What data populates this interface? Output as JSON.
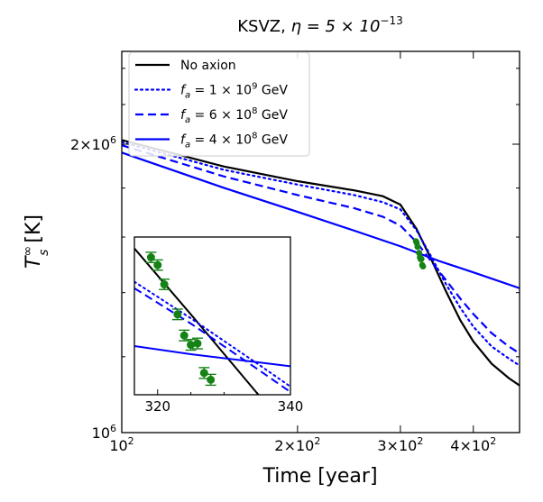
{
  "chart_data": {
    "type": "line",
    "title_text": "KSVZ, ",
    "title_math": "η = 5 × 10",
    "title_exp": "−13",
    "xlabel": "Time [year]",
    "ylabel_main": "T",
    "ylabel_sup": "∞",
    "ylabel_sub": "s",
    "ylabel_unit": " [K]",
    "xscale": "log",
    "yscale": "log",
    "xlim": [
      100,
      480
    ],
    "ylim": [
      1000000,
      2500000
    ],
    "x_ticks": [
      {
        "value": 100,
        "mant": "10",
        "exp": "2"
      },
      {
        "value": 200,
        "mant": "2×10",
        "exp": "2"
      },
      {
        "value": 300,
        "mant": "3×10",
        "exp": "2"
      },
      {
        "value": 400,
        "mant": "4×10",
        "exp": "2"
      }
    ],
    "y_ticks": [
      {
        "value": 1000000,
        "mant": "10",
        "exp": "6"
      },
      {
        "value": 2000000,
        "mant": "2×10",
        "exp": "6"
      }
    ],
    "legend_position": "top-left",
    "series": [
      {
        "label": "No axion",
        "label_prefix": "",
        "label_suffix": "",
        "color": "#000000",
        "dash": "solid",
        "points": [
          [
            100,
            2020000
          ],
          [
            150,
            1895000
          ],
          [
            200,
            1830000
          ],
          [
            250,
            1790000
          ],
          [
            280,
            1765000
          ],
          [
            300,
            1730000
          ],
          [
            320,
            1630000
          ],
          [
            340,
            1510000
          ],
          [
            360,
            1400000
          ],
          [
            380,
            1310000
          ],
          [
            400,
            1245000
          ],
          [
            430,
            1180000
          ],
          [
            460,
            1140000
          ],
          [
            480,
            1120000
          ]
        ]
      },
      {
        "label": "",
        "label_prefix": "f",
        "label_prefix_sub": "a",
        "label_mid": " = 1 × 10",
        "label_exp": "9",
        "label_suffix": " GeV",
        "color": "#0000ff",
        "dash": "dotted",
        "points": [
          [
            100,
            2010000
          ],
          [
            150,
            1880000
          ],
          [
            200,
            1815000
          ],
          [
            250,
            1770000
          ],
          [
            280,
            1740000
          ],
          [
            300,
            1710000
          ],
          [
            320,
            1625000
          ],
          [
            340,
            1520000
          ],
          [
            360,
            1425000
          ],
          [
            380,
            1350000
          ],
          [
            400,
            1290000
          ],
          [
            430,
            1230000
          ],
          [
            460,
            1195000
          ],
          [
            480,
            1175000
          ]
        ]
      },
      {
        "label": "",
        "label_prefix": "f",
        "label_prefix_sub": "a",
        "label_mid": " = 6 × 10",
        "label_exp": "8",
        "label_suffix": " GeV",
        "color": "#0000ff",
        "dash": "dashed",
        "points": [
          [
            100,
            1995000
          ],
          [
            150,
            1850000
          ],
          [
            200,
            1770000
          ],
          [
            250,
            1715000
          ],
          [
            280,
            1680000
          ],
          [
            300,
            1645000
          ],
          [
            320,
            1580000
          ],
          [
            340,
            1505000
          ],
          [
            360,
            1440000
          ],
          [
            380,
            1380000
          ],
          [
            400,
            1330000
          ],
          [
            430,
            1270000
          ],
          [
            460,
            1230000
          ],
          [
            480,
            1210000
          ]
        ]
      },
      {
        "label": "",
        "label_prefix": "f",
        "label_prefix_sub": "a",
        "label_mid": " = 4 × 10",
        "label_exp": "8",
        "label_suffix": " GeV",
        "color": "#0000ff",
        "dash": "solid",
        "points": [
          [
            100,
            1960000
          ],
          [
            150,
            1800000
          ],
          [
            200,
            1700000
          ],
          [
            250,
            1625000
          ],
          [
            300,
            1565000
          ],
          [
            350,
            1510000
          ],
          [
            400,
            1470000
          ],
          [
            480,
            1415000
          ]
        ]
      }
    ],
    "observations": {
      "color": "#148214",
      "points": [
        [
          319,
          1584000
        ],
        [
          320,
          1578000
        ],
        [
          321,
          1563000
        ],
        [
          323,
          1540000
        ],
        [
          324,
          1524000
        ],
        [
          325,
          1517000
        ],
        [
          326,
          1518000
        ],
        [
          327,
          1496000
        ],
        [
          328,
          1491000
        ]
      ],
      "yerr": 4000
    },
    "inset": {
      "xlim": [
        316.5,
        340
      ],
      "ylim": [
        1480000,
        1600000
      ],
      "yscale": "log",
      "x_ticks": [
        {
          "value": 320,
          "label": "320"
        },
        {
          "value": 340,
          "label": "340"
        }
      ],
      "series_points": [
        [
          [
            316.5,
            1591000
          ],
          [
            325,
            1540000
          ],
          [
            335,
            1481000
          ],
          [
            340,
            1455000
          ]
        ],
        [
          [
            316.5,
            1565000
          ],
          [
            325,
            1537000
          ],
          [
            335,
            1503000
          ],
          [
            340,
            1486000
          ]
        ],
        [
          [
            316.5,
            1560000
          ],
          [
            325,
            1533000
          ],
          [
            335,
            1499000
          ],
          [
            340,
            1482000
          ]
        ],
        [
          [
            316.5,
            1516000
          ],
          [
            325,
            1510000
          ],
          [
            335,
            1504000
          ],
          [
            340,
            1501000
          ]
        ]
      ]
    }
  }
}
